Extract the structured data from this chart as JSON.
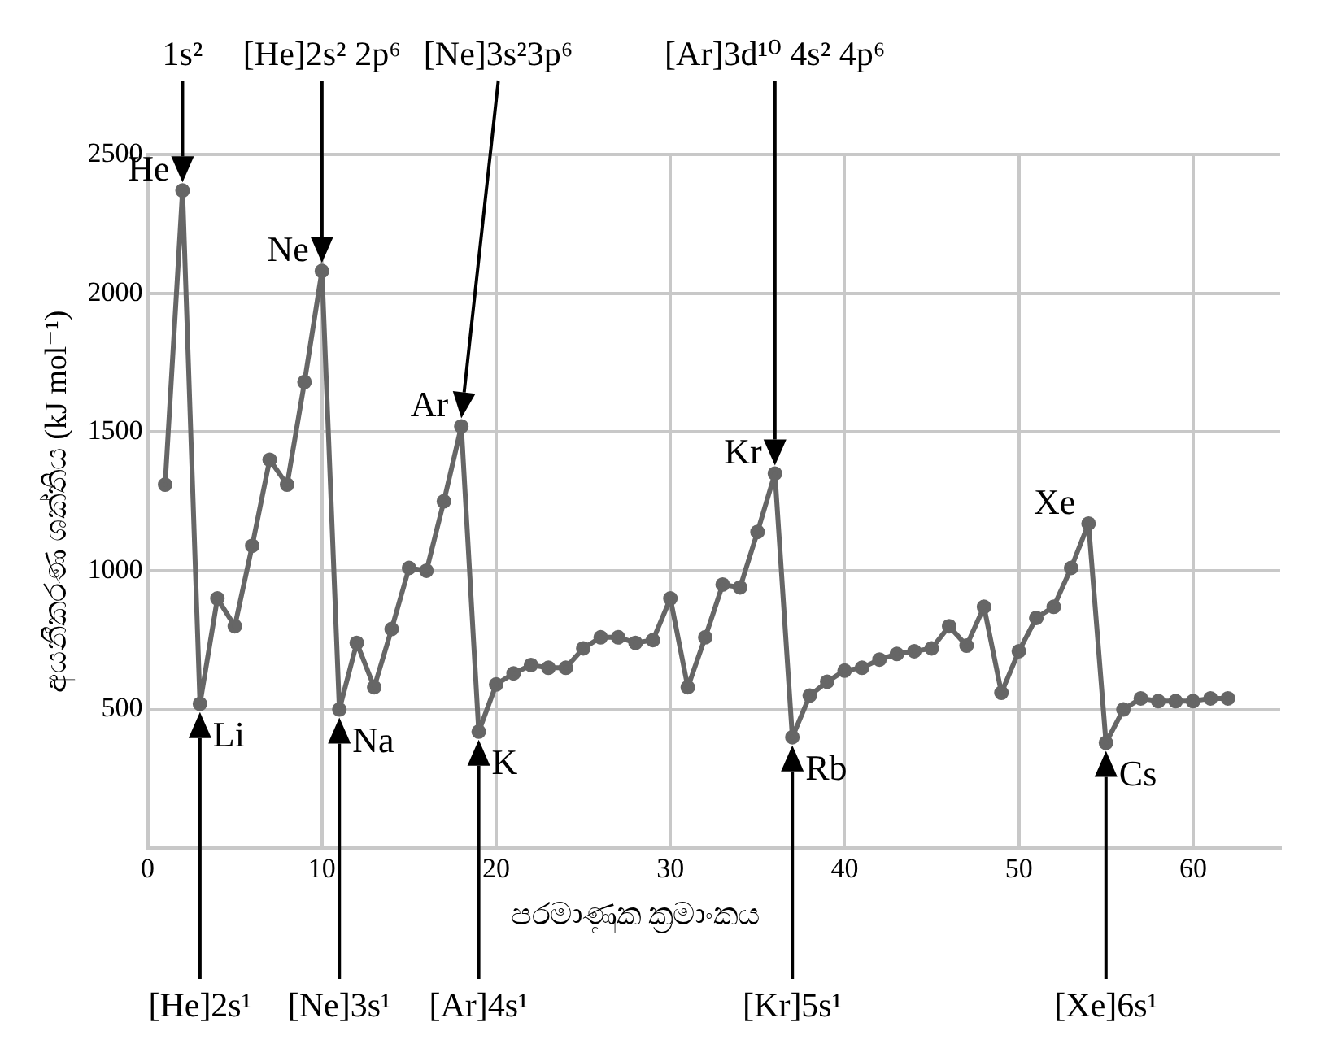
{
  "chart_data": {
    "type": "line",
    "xlabel": "පරමාණුක ක්‍රමාංකය",
    "ylabel": "අයනීකරණ ශක්තිය (kJ mol⁻¹)",
    "x": [
      1,
      2,
      3,
      4,
      5,
      6,
      7,
      8,
      9,
      10,
      11,
      12,
      13,
      14,
      15,
      16,
      17,
      18,
      19,
      20,
      21,
      22,
      23,
      24,
      25,
      26,
      27,
      28,
      29,
      30,
      31,
      32,
      33,
      34,
      35,
      36,
      37,
      38,
      39,
      40,
      41,
      42,
      43,
      44,
      45,
      46,
      47,
      48,
      49,
      50,
      51,
      52,
      53,
      54,
      55,
      56,
      57,
      58,
      59,
      60,
      61,
      62
    ],
    "series": [
      {
        "color": "#666666",
        "values": [
          1310,
          2370,
          520,
          900,
          800,
          1090,
          1400,
          1310,
          1680,
          2080,
          500,
          740,
          580,
          790,
          1010,
          1000,
          1250,
          1520,
          420,
          590,
          630,
          660,
          650,
          650,
          720,
          760,
          760,
          740,
          750,
          900,
          580,
          760,
          950,
          940,
          1140,
          1350,
          400,
          550,
          600,
          640,
          650,
          680,
          700,
          710,
          720,
          800,
          730,
          870,
          560,
          710,
          830,
          870,
          1010,
          1170,
          380,
          500,
          540,
          530,
          530,
          530,
          540,
          540
        ],
        "value_labels": [
          null,
          "He",
          "Li",
          null,
          null,
          null,
          null,
          null,
          null,
          "Ne",
          "Na",
          null,
          null,
          null,
          null,
          null,
          null,
          "Ar",
          "K",
          null,
          null,
          null,
          null,
          null,
          null,
          null,
          null,
          null,
          null,
          null,
          null,
          null,
          null,
          null,
          null,
          "Kr",
          "Rb",
          null,
          null,
          null,
          null,
          null,
          null,
          null,
          null,
          null,
          null,
          null,
          null,
          null,
          null,
          null,
          null,
          "Xe",
          "Cs",
          null,
          null,
          null,
          null,
          null,
          null,
          null
        ]
      }
    ],
    "xlim": [
      0,
      65
    ],
    "xticks": [
      0,
      10,
      20,
      30,
      40,
      50,
      60
    ],
    "ylim": [
      0,
      2500
    ],
    "yticks": [
      500,
      1000,
      1500,
      2000,
      2500
    ],
    "grid": true,
    "marker": "circle",
    "legend": false,
    "annotations": [
      "[He]2s¹",
      "[Ne]3s¹",
      "[Ar]4s¹",
      "[Kr]5s¹",
      "[Xe]6s¹",
      "1s²",
      "[He]2s² 2p⁶",
      "[Ne]3s²3p⁶",
      "[Ar]3d¹⁰ 4s² 4p⁶"
    ]
  }
}
